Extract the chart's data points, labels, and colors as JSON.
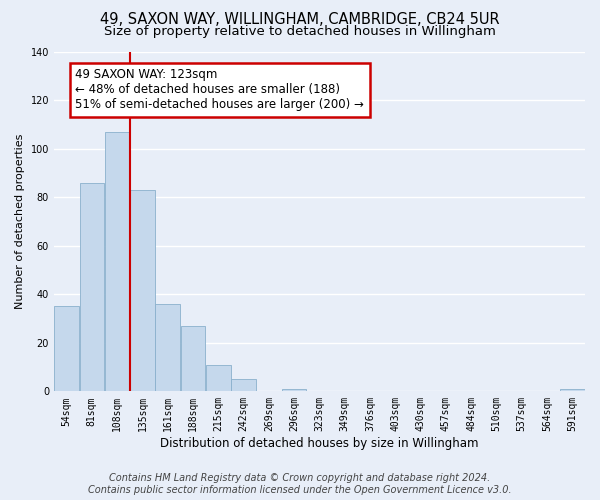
{
  "title": "49, SAXON WAY, WILLINGHAM, CAMBRIDGE, CB24 5UR",
  "subtitle": "Size of property relative to detached houses in Willingham",
  "xlabel": "Distribution of detached houses by size in Willingham",
  "ylabel": "Number of detached properties",
  "categories": [
    "54sqm",
    "81sqm",
    "108sqm",
    "135sqm",
    "161sqm",
    "188sqm",
    "215sqm",
    "242sqm",
    "269sqm",
    "296sqm",
    "323sqm",
    "349sqm",
    "376sqm",
    "403sqm",
    "430sqm",
    "457sqm",
    "484sqm",
    "510sqm",
    "537sqm",
    "564sqm",
    "591sqm"
  ],
  "values": [
    35,
    86,
    107,
    83,
    36,
    27,
    11,
    5,
    0,
    1,
    0,
    0,
    0,
    0,
    0,
    0,
    0,
    0,
    0,
    0,
    1
  ],
  "bar_color": "#c5d8ec",
  "bar_edge_color": "#8ab0cc",
  "vline_x_index": 2.5,
  "vline_color": "#cc0000",
  "annotation_text": "49 SAXON WAY: 123sqm\n← 48% of detached houses are smaller (188)\n51% of semi-detached houses are larger (200) →",
  "annotation_box_facecolor": "#ffffff",
  "annotation_box_edgecolor": "#cc0000",
  "ylim": [
    0,
    140
  ],
  "yticks": [
    0,
    20,
    40,
    60,
    80,
    100,
    120,
    140
  ],
  "background_color": "#e8eef8",
  "plot_bg_color": "#e8eef8",
  "grid_color": "#ffffff",
  "footer_line1": "Contains HM Land Registry data © Crown copyright and database right 2024.",
  "footer_line2": "Contains public sector information licensed under the Open Government Licence v3.0.",
  "title_fontsize": 10.5,
  "subtitle_fontsize": 9.5,
  "xlabel_fontsize": 8.5,
  "ylabel_fontsize": 8,
  "tick_fontsize": 7,
  "annotation_fontsize": 8.5,
  "footer_fontsize": 7
}
